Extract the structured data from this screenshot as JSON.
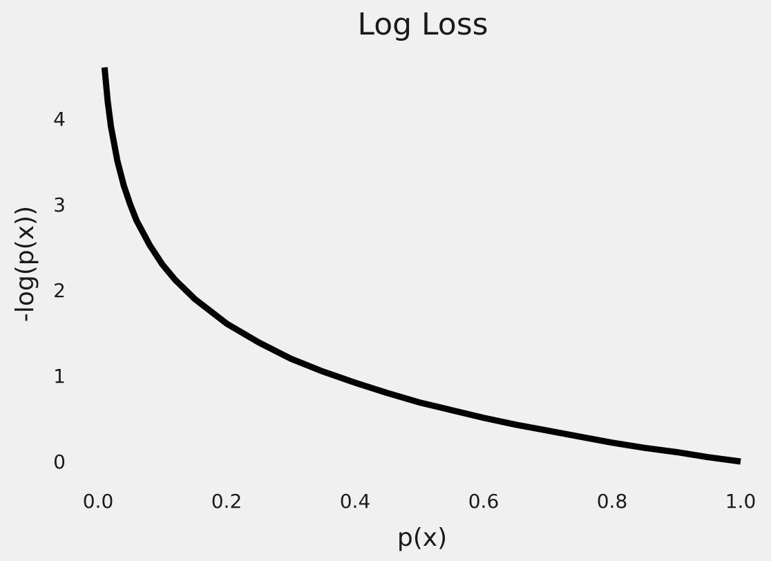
{
  "chart_data": {
    "type": "line",
    "title": "Log Loss",
    "xlabel": "p(x)",
    "ylabel": "-log(p(x))",
    "xlim": [
      0.0,
      1.0
    ],
    "ylim": [
      0.0,
      4.6
    ],
    "x_ticks": [
      0.0,
      0.2,
      0.4,
      0.6,
      0.8,
      1.0
    ],
    "x_tick_labels": [
      "0.0",
      "0.2",
      "0.4",
      "0.6",
      "0.8",
      "1.0"
    ],
    "y_ticks": [
      0,
      1,
      2,
      3,
      4
    ],
    "y_tick_labels": [
      "0",
      "1",
      "2",
      "3",
      "4"
    ],
    "grid": false,
    "legend": "none",
    "series": [
      {
        "color": "#000000",
        "x": [
          0.01,
          0.015,
          0.02,
          0.03,
          0.04,
          0.05,
          0.06,
          0.08,
          0.1,
          0.12,
          0.15,
          0.2,
          0.25,
          0.3,
          0.35,
          0.4,
          0.45,
          0.5,
          0.55,
          0.6,
          0.65,
          0.7,
          0.75,
          0.8,
          0.85,
          0.9,
          0.95,
          1.0
        ],
        "y": [
          4.6,
          4.2,
          3.91,
          3.51,
          3.22,
          3.0,
          2.81,
          2.53,
          2.3,
          2.12,
          1.9,
          1.61,
          1.39,
          1.2,
          1.05,
          0.92,
          0.8,
          0.69,
          0.6,
          0.51,
          0.43,
          0.36,
          0.29,
          0.22,
          0.16,
          0.11,
          0.05,
          0.0
        ]
      }
    ]
  }
}
